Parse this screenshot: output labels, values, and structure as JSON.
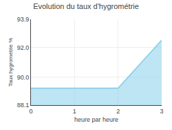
{
  "chart_data": {
    "type": "area",
    "title": "Evolution du taux d'hygrométrie",
    "xlabel": "heure par heure",
    "ylabel": "Taux hygrométrie %",
    "x": [
      0,
      1,
      2,
      3
    ],
    "values": [
      89.25,
      89.25,
      89.25,
      92.5
    ],
    "color": "#7dcce8",
    "xlim": [
      0,
      3
    ],
    "ylim": [
      88.1,
      93.9
    ],
    "xticks": [
      0,
      1,
      2,
      3
    ],
    "yticks": [
      88.1,
      {
        "value": 90,
        "label": "90.0"
      },
      {
        "value": 92,
        "label": "92.0"
      },
      93.9
    ],
    "grid": true
  }
}
